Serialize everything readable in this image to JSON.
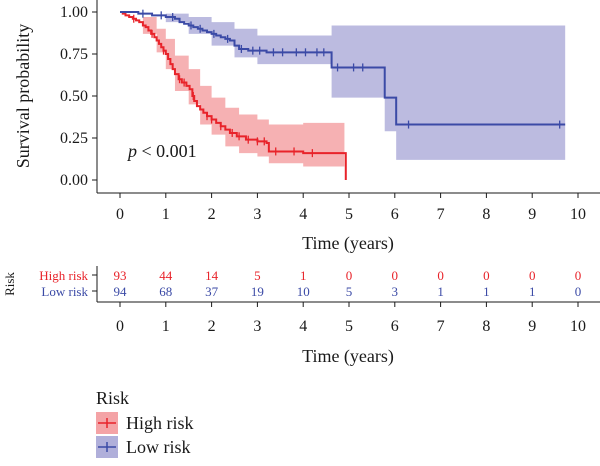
{
  "chart_data": {
    "type": "kaplan-meier",
    "ylabel": "Survival probability",
    "xlabel": "Time (years)",
    "xlim": [
      0,
      10
    ],
    "ylim": [
      0,
      1
    ],
    "x_ticks": [
      "0",
      "1",
      "2",
      "3",
      "4",
      "5",
      "6",
      "7",
      "8",
      "9",
      "10"
    ],
    "y_ticks": [
      "0.00",
      "0.25",
      "0.50",
      "0.75",
      "1.00"
    ],
    "annotation": {
      "p_symbol": "p",
      "p_rest": " < 0.001"
    },
    "series": [
      {
        "name": "High risk",
        "color": "#e8232a",
        "band_color": "#f4a3a6",
        "steps": [
          [
            0,
            1.0
          ],
          [
            0.06,
            0.99
          ],
          [
            0.12,
            0.98
          ],
          [
            0.2,
            0.97
          ],
          [
            0.28,
            0.96
          ],
          [
            0.35,
            0.95
          ],
          [
            0.42,
            0.94
          ],
          [
            0.5,
            0.92
          ],
          [
            0.56,
            0.91
          ],
          [
            0.62,
            0.89
          ],
          [
            0.68,
            0.87
          ],
          [
            0.75,
            0.85
          ],
          [
            0.8,
            0.83
          ],
          [
            0.85,
            0.81
          ],
          [
            0.9,
            0.79
          ],
          [
            0.95,
            0.77
          ],
          [
            1.0,
            0.75
          ],
          [
            1.05,
            0.72
          ],
          [
            1.1,
            0.69
          ],
          [
            1.15,
            0.66
          ],
          [
            1.2,
            0.63
          ],
          [
            1.28,
            0.6
          ],
          [
            1.35,
            0.58
          ],
          [
            1.45,
            0.56
          ],
          [
            1.52,
            0.54
          ],
          [
            1.58,
            0.5
          ],
          [
            1.62,
            0.47
          ],
          [
            1.68,
            0.44
          ],
          [
            1.75,
            0.42
          ],
          [
            1.82,
            0.4
          ],
          [
            1.9,
            0.38
          ],
          [
            2.0,
            0.36
          ],
          [
            2.1,
            0.34
          ],
          [
            2.2,
            0.32
          ],
          [
            2.3,
            0.3
          ],
          [
            2.4,
            0.28
          ],
          [
            2.55,
            0.26
          ],
          [
            2.75,
            0.24
          ],
          [
            3.0,
            0.23
          ],
          [
            3.2,
            0.22
          ],
          [
            3.25,
            0.17
          ],
          [
            4.0,
            0.16
          ],
          [
            4.9,
            0.16
          ],
          [
            4.93,
            0.0
          ]
        ],
        "band_upper": [
          [
            0,
            1.0
          ],
          [
            0.5,
            0.97
          ],
          [
            0.8,
            0.9
          ],
          [
            1.0,
            0.84
          ],
          [
            1.2,
            0.74
          ],
          [
            1.5,
            0.66
          ],
          [
            1.75,
            0.56
          ],
          [
            2.0,
            0.49
          ],
          [
            2.3,
            0.43
          ],
          [
            2.6,
            0.39
          ],
          [
            3.0,
            0.36
          ],
          [
            3.25,
            0.33
          ],
          [
            4.0,
            0.34
          ],
          [
            4.9,
            0.35
          ]
        ],
        "band_lower": [
          [
            0,
            1.0
          ],
          [
            0.5,
            0.87
          ],
          [
            0.8,
            0.76
          ],
          [
            1.0,
            0.66
          ],
          [
            1.2,
            0.53
          ],
          [
            1.5,
            0.45
          ],
          [
            1.75,
            0.33
          ],
          [
            2.0,
            0.27
          ],
          [
            2.3,
            0.2
          ],
          [
            2.6,
            0.16
          ],
          [
            3.0,
            0.14
          ],
          [
            3.25,
            0.1
          ],
          [
            4.0,
            0.08
          ],
          [
            4.9,
            0.07
          ]
        ],
        "censor_x": [
          0.3,
          0.7,
          0.95,
          1.3,
          1.4,
          1.6,
          1.9,
          2.0,
          2.2,
          2.45,
          2.6,
          2.8,
          3.0,
          3.15,
          3.4,
          3.8,
          4.2
        ]
      },
      {
        "name": "Low risk",
        "color": "#3b4aa6",
        "band_color": "#b0afda",
        "steps": [
          [
            0,
            1.0
          ],
          [
            0.4,
            0.99
          ],
          [
            0.7,
            0.98
          ],
          [
            1.0,
            0.97
          ],
          [
            1.2,
            0.96
          ],
          [
            1.3,
            0.94
          ],
          [
            1.4,
            0.93
          ],
          [
            1.5,
            0.92
          ],
          [
            1.6,
            0.91
          ],
          [
            1.7,
            0.9
          ],
          [
            1.8,
            0.89
          ],
          [
            1.9,
            0.88
          ],
          [
            2.0,
            0.87
          ],
          [
            2.1,
            0.86
          ],
          [
            2.2,
            0.85
          ],
          [
            2.3,
            0.84
          ],
          [
            2.4,
            0.83
          ],
          [
            2.5,
            0.8
          ],
          [
            2.6,
            0.78
          ],
          [
            2.8,
            0.77
          ],
          [
            3.0,
            0.77
          ],
          [
            3.2,
            0.76
          ],
          [
            4.6,
            0.76
          ],
          [
            4.62,
            0.67
          ],
          [
            5.75,
            0.67
          ],
          [
            5.78,
            0.49
          ],
          [
            6.0,
            0.49
          ],
          [
            6.03,
            0.33
          ],
          [
            9.72,
            0.33
          ]
        ],
        "band_upper": [
          [
            0,
            1.0
          ],
          [
            1.0,
            0.99
          ],
          [
            1.5,
            0.97
          ],
          [
            2.0,
            0.94
          ],
          [
            2.5,
            0.9
          ],
          [
            3.0,
            0.86
          ],
          [
            4.6,
            0.86
          ],
          [
            4.62,
            0.92
          ],
          [
            9.72,
            0.93
          ]
        ],
        "band_lower": [
          [
            0,
            1.0
          ],
          [
            1.0,
            0.94
          ],
          [
            1.5,
            0.87
          ],
          [
            2.0,
            0.8
          ],
          [
            2.5,
            0.73
          ],
          [
            3.0,
            0.69
          ],
          [
            4.6,
            0.68
          ],
          [
            4.62,
            0.49
          ],
          [
            5.78,
            0.49
          ],
          [
            5.78,
            0.29
          ],
          [
            6.0,
            0.29
          ],
          [
            6.03,
            0.12
          ],
          [
            9.72,
            0.12
          ]
        ],
        "censor_x": [
          0.5,
          0.9,
          1.15,
          1.55,
          1.75,
          2.05,
          2.35,
          2.65,
          2.9,
          3.05,
          3.35,
          3.55,
          3.85,
          4.05,
          4.3,
          4.45,
          4.75,
          5.1,
          5.3,
          6.3,
          9.6
        ]
      }
    ]
  },
  "risk_table": {
    "title": "Risk",
    "rows": [
      {
        "label": "High risk",
        "color": "#e8232a",
        "values": [
          "93",
          "44",
          "14",
          "5",
          "1",
          "0",
          "0",
          "0",
          "0",
          "0",
          "0"
        ]
      },
      {
        "label": "Low risk",
        "color": "#3b4aa6",
        "values": [
          "94",
          "68",
          "37",
          "19",
          "10",
          "5",
          "3",
          "1",
          "1",
          "1",
          "0"
        ]
      }
    ],
    "xlabel": "Time (years)",
    "x_ticks": [
      "0",
      "1",
      "2",
      "3",
      "4",
      "5",
      "6",
      "7",
      "8",
      "9",
      "10"
    ]
  },
  "legend": {
    "title": "Risk",
    "items": [
      {
        "label": "High risk",
        "color": "#e8232a",
        "band_color": "#f4a3a6"
      },
      {
        "label": "Low risk",
        "color": "#3b4aa6",
        "band_color": "#b0afda"
      }
    ]
  }
}
